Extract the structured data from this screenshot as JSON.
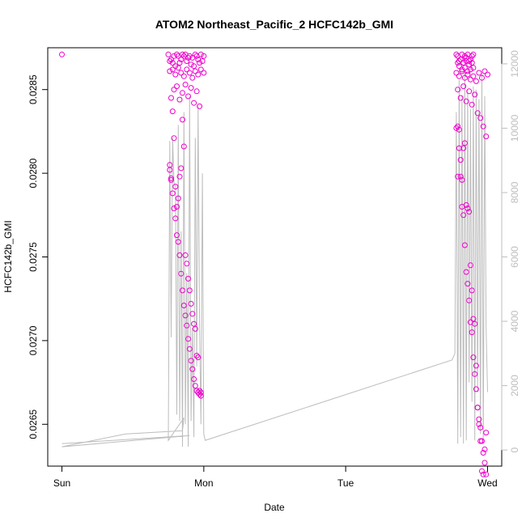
{
  "chart_data": {
    "type": "scatter",
    "title": "ATOM2 Northeast_Pacific_2 HCFC142b_GMI",
    "xlabel": "Date",
    "ylabel": "HCFC142b_GMI",
    "x_ticks": [
      {
        "value": 0,
        "label": "Sun"
      },
      {
        "value": 1,
        "label": "Mon"
      },
      {
        "value": 2,
        "label": "Tue"
      },
      {
        "value": 3,
        "label": "Wed"
      }
    ],
    "y_ticks": [
      0.0265,
      0.027,
      0.0275,
      0.028,
      0.0285
    ],
    "y_tick_labels": [
      "0.0265",
      "0.0270",
      "0.0275",
      "0.0280",
      "0.0285"
    ],
    "y2_ticks": [
      0,
      2000,
      4000,
      6000,
      8000,
      10000,
      12000
    ],
    "y2_tick_labels": [
      "0",
      "2000",
      "4000",
      "6000",
      "8000",
      "10000",
      "12000"
    ],
    "xlim": [
      -0.1,
      3.1
    ],
    "ylim": [
      0.02625,
      0.02875
    ],
    "y2lim": [
      -500,
      12500
    ],
    "grid": false,
    "colors": {
      "points": "#ee00cc",
      "altitude": "#bdbdbd",
      "axes": "#000000"
    },
    "series": [
      {
        "role": "HCFC142b_GMI",
        "marker": "open-circle",
        "x": [
          0.0,
          0.75,
          0.76,
          0.77,
          0.78,
          0.79,
          0.8,
          0.81,
          0.82,
          0.83,
          0.84,
          0.85,
          0.86,
          0.87,
          0.88,
          0.89,
          0.9,
          0.91,
          0.92,
          0.93,
          0.94,
          0.95,
          0.96,
          0.97,
          0.98,
          0.99,
          1.0,
          0.76,
          0.78,
          0.8,
          0.82,
          0.84,
          0.86,
          0.88,
          0.9,
          0.92,
          0.94,
          0.96,
          0.98,
          1.0,
          0.77,
          0.79,
          0.81,
          0.83,
          0.85,
          0.87,
          0.89,
          0.91,
          0.93,
          0.95,
          0.97,
          0.76,
          0.77,
          0.78,
          0.79,
          0.8,
          0.81,
          0.82,
          0.83,
          0.84,
          0.85,
          0.86,
          0.87,
          0.88,
          0.89,
          0.9,
          0.91,
          0.92,
          0.93,
          0.94,
          0.95,
          0.96,
          0.97,
          0.98,
          0.76,
          0.77,
          0.78,
          0.79,
          0.8,
          0.81,
          0.82,
          0.83,
          0.84,
          0.85,
          0.86,
          0.87,
          0.88,
          0.89,
          0.9,
          0.91,
          0.92,
          0.93,
          0.94,
          0.95,
          0.96,
          0.97,
          0.98,
          2.78,
          2.79,
          2.8,
          2.81,
          2.82,
          2.83,
          2.84,
          2.85,
          2.86,
          2.87,
          2.88,
          2.89,
          2.9,
          2.79,
          2.8,
          2.81,
          2.82,
          2.83,
          2.84,
          2.85,
          2.86,
          2.87,
          2.88,
          2.89,
          2.9,
          2.78,
          2.8,
          2.82,
          2.84,
          2.86,
          2.88,
          2.9,
          2.92,
          2.94,
          2.96,
          2.98,
          3.0,
          2.79,
          2.81,
          2.83,
          2.85,
          2.87,
          2.89,
          2.91,
          2.93,
          2.95,
          2.97,
          2.99,
          2.79,
          2.8,
          2.81,
          2.82,
          2.83,
          2.84,
          2.85,
          2.86,
          2.87,
          2.88,
          2.89,
          2.9,
          2.91,
          2.92,
          2.93,
          2.94,
          2.95,
          2.96,
          2.97,
          2.98,
          2.99,
          2.78,
          2.79,
          2.8,
          2.81,
          2.82,
          2.83,
          2.84,
          2.85,
          2.86,
          2.87,
          2.88,
          2.89,
          2.9,
          2.91,
          2.92,
          2.93,
          2.94,
          2.95,
          2.96,
          2.97,
          2.98,
          2.99
        ],
        "y": [
          0.02871,
          0.02871,
          0.02867,
          0.02868,
          0.02866,
          0.0287,
          0.02864,
          0.02871,
          0.0287,
          0.02866,
          0.02868,
          0.02871,
          0.0287,
          0.02871,
          0.02867,
          0.02869,
          0.0287,
          0.02865,
          0.02869,
          0.02864,
          0.02871,
          0.0287,
          0.02868,
          0.02866,
          0.02871,
          0.02867,
          0.0287,
          0.02861,
          0.02862,
          0.02859,
          0.02863,
          0.0286,
          0.02858,
          0.02862,
          0.0286,
          0.02857,
          0.02861,
          0.02859,
          0.02862,
          0.0286,
          0.02845,
          0.0285,
          0.02852,
          0.02844,
          0.02848,
          0.02853,
          0.02846,
          0.02851,
          0.02842,
          0.02849,
          0.0284,
          0.02805,
          0.02797,
          0.02837,
          0.02821,
          0.02792,
          0.0278,
          0.02785,
          0.02798,
          0.02803,
          0.02832,
          0.02816,
          0.02751,
          0.02746,
          0.02737,
          0.0273,
          0.02722,
          0.02716,
          0.0271,
          0.02707,
          0.02691,
          0.0269,
          0.0267,
          0.02669,
          0.02802,
          0.02796,
          0.02788,
          0.02779,
          0.02773,
          0.02763,
          0.02759,
          0.02751,
          0.0274,
          0.0273,
          0.02721,
          0.02715,
          0.02709,
          0.02701,
          0.02695,
          0.02688,
          0.02683,
          0.02677,
          0.02673,
          0.0267,
          0.02669,
          0.02668,
          0.02667,
          0.02871,
          0.0287,
          0.02867,
          0.02868,
          0.02871,
          0.02866,
          0.0287,
          0.02869,
          0.02871,
          0.02867,
          0.02868,
          0.0287,
          0.02871,
          0.02866,
          0.02864,
          0.02868,
          0.02862,
          0.02866,
          0.02863,
          0.02867,
          0.02861,
          0.02865,
          0.02862,
          0.02866,
          0.02863,
          0.0286,
          0.02858,
          0.02861,
          0.02857,
          0.02859,
          0.02856,
          0.02858,
          0.02855,
          0.0286,
          0.02857,
          0.02861,
          0.02859,
          0.0285,
          0.02845,
          0.02852,
          0.02843,
          0.02849,
          0.02841,
          0.02847,
          0.02836,
          0.02833,
          0.02828,
          0.02822,
          0.02828,
          0.02826,
          0.02798,
          0.02796,
          0.02815,
          0.02818,
          0.02781,
          0.02779,
          0.02777,
          0.02745,
          0.0273,
          0.02713,
          0.0271,
          0.02685,
          0.0266,
          0.0265,
          0.0264,
          0.02622,
          0.0262,
          0.02635,
          0.02645,
          0.02827,
          0.02798,
          0.02815,
          0.02808,
          0.0278,
          0.02775,
          0.02757,
          0.02741,
          0.02734,
          0.02724,
          0.02711,
          0.02705,
          0.0269,
          0.0268,
          0.02671,
          0.0266,
          0.02653,
          0.02648,
          0.0264,
          0.02633,
          0.02627,
          0.0262
        ]
      },
      {
        "role": "altitude",
        "axis": "right",
        "x": [
          0.0,
          0.9,
          0.0,
          0.45,
          0.85,
          0.86,
          0.75,
          0.76,
          0.77,
          0.78,
          0.79,
          0.8,
          0.81,
          0.82,
          0.83,
          0.84,
          0.85,
          0.86,
          0.87,
          0.88,
          0.89,
          0.9,
          0.91,
          0.92,
          0.93,
          0.94,
          0.95,
          0.96,
          0.97,
          0.98,
          0.99,
          1.0,
          1.01,
          2.75,
          2.77,
          2.78,
          2.79,
          2.8,
          2.81,
          2.82,
          2.83,
          2.84,
          2.85,
          2.86,
          2.87,
          2.88,
          2.89,
          2.9,
          2.91,
          2.92,
          2.93,
          2.94,
          2.95,
          2.96,
          2.97,
          2.98,
          2.99,
          3.0
        ],
        "y": [
          200,
          450,
          100,
          500,
          600,
          1000,
          300,
          9600,
          3500,
          9700,
          8300,
          8200,
          1100,
          10100,
          900,
          6800,
          100,
          10500,
          800,
          5500,
          100,
          11000,
          900,
          3800,
          400,
          9700,
          2600,
          10700,
          3900,
          800,
          8600,
          500,
          300,
          2800,
          3000,
          10500,
          200,
          11500,
          400,
          11000,
          200,
          11800,
          300,
          11200,
          2100,
          10600,
          1500,
          11300,
          300,
          11200,
          1800,
          10900,
          500,
          11700,
          200,
          11000,
          3800,
          1800
        ]
      }
    ]
  }
}
